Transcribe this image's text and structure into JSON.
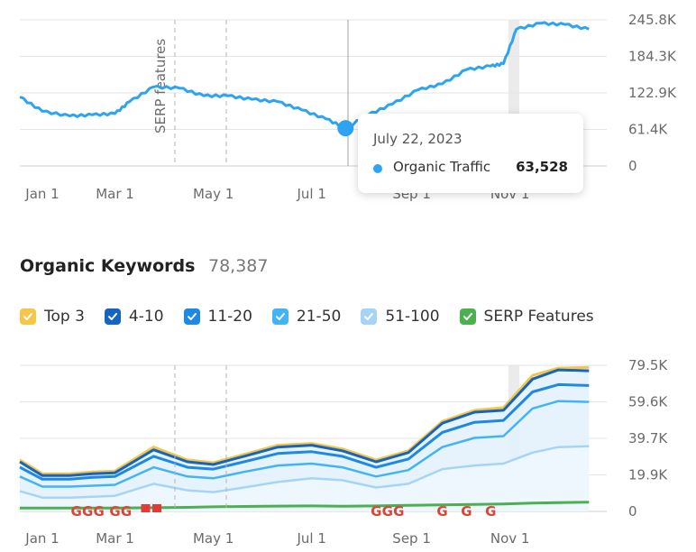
{
  "chart_data": [
    {
      "type": "line",
      "series": [
        {
          "name": "Organic Traffic",
          "color": "#2ea3f2"
        }
      ],
      "x_ticks": [
        "Jan 1",
        "Mar 1",
        "May 1",
        "Jul 1",
        "Sep 1",
        "Nov 1"
      ],
      "y_ticks": [
        "245.8K",
        "184.3K",
        "122.9K",
        "61.4K",
        "0"
      ],
      "ylim": [
        0,
        245800
      ],
      "annotation": "SERP features",
      "points": [
        [
          "2023-01-01",
          116000
        ],
        [
          "2023-01-15",
          92000
        ],
        [
          "2023-02-01",
          84000
        ],
        [
          "2023-02-15",
          86000
        ],
        [
          "2023-03-01",
          88000
        ],
        [
          "2023-03-10",
          108000
        ],
        [
          "2023-03-25",
          133000
        ],
        [
          "2023-04-10",
          131000
        ],
        [
          "2023-04-25",
          118000
        ],
        [
          "2023-05-10",
          118000
        ],
        [
          "2023-05-25",
          112000
        ],
        [
          "2023-06-10",
          108000
        ],
        [
          "2023-06-25",
          94000
        ],
        [
          "2023-07-10",
          79000
        ],
        [
          "2023-07-22",
          63528
        ],
        [
          "2023-08-05",
          86000
        ],
        [
          "2023-08-20",
          104000
        ],
        [
          "2023-09-05",
          128000
        ],
        [
          "2023-09-20",
          138000
        ],
        [
          "2023-10-05",
          162000
        ],
        [
          "2023-10-20",
          168000
        ],
        [
          "2023-10-28",
          172000
        ],
        [
          "2023-11-05",
          230000
        ],
        [
          "2023-11-20",
          240000
        ],
        [
          "2023-12-05",
          238000
        ],
        [
          "2023-12-20",
          230000
        ]
      ],
      "tooltip": {
        "date": "July 22, 2023",
        "label": "Organic Traffic",
        "value": "63,528"
      }
    },
    {
      "type": "area",
      "title": "Organic Keywords",
      "total": "78,387",
      "x_ticks": [
        "Jan 1",
        "Mar 1",
        "May 1",
        "Jul 1",
        "Sep 1",
        "Nov 1"
      ],
      "y_ticks": [
        "79.5K",
        "59.6K",
        "39.7K",
        "19.9K",
        "0"
      ],
      "ylim": [
        0,
        79500
      ],
      "x": [
        "2023-01-01",
        "2023-01-15",
        "2023-02-01",
        "2023-02-15",
        "2023-03-01",
        "2023-03-25",
        "2023-04-15",
        "2023-05-01",
        "2023-05-20",
        "2023-06-10",
        "2023-07-01",
        "2023-07-20",
        "2023-08-10",
        "2023-08-30",
        "2023-09-20",
        "2023-10-10",
        "2023-10-28",
        "2023-11-15",
        "2023-12-01",
        "2023-12-20"
      ],
      "series": [
        {
          "name": "Top 3",
          "color": "#f5c64a",
          "values": [
            28000,
            20500,
            20500,
            21500,
            22000,
            35000,
            28000,
            26500,
            31000,
            36000,
            37000,
            34000,
            28000,
            33000,
            49000,
            55000,
            56500,
            74000,
            78000,
            78387
          ]
        },
        {
          "name": "4-10",
          "color": "#1565c0",
          "values": [
            27000,
            19500,
            19500,
            20500,
            21000,
            33500,
            27000,
            25500,
            30000,
            35000,
            36000,
            33000,
            27000,
            32000,
            48000,
            54000,
            55000,
            72000,
            77000,
            76500
          ]
        },
        {
          "name": "11-20",
          "color": "#1e88e5",
          "values": [
            24000,
            17500,
            17500,
            18500,
            19000,
            30000,
            24000,
            23000,
            27000,
            31500,
            32500,
            30000,
            24000,
            28500,
            43000,
            48500,
            49500,
            65000,
            69000,
            68500
          ]
        },
        {
          "name": "21-50",
          "color": "#42b4f5",
          "values": [
            19000,
            13500,
            13500,
            14000,
            14500,
            24000,
            19000,
            18000,
            21500,
            25000,
            26000,
            24000,
            19000,
            22500,
            35000,
            40000,
            41000,
            56000,
            60000,
            59600
          ]
        },
        {
          "name": "51-100",
          "color": "#a6d4f7",
          "values": [
            11000,
            7500,
            7500,
            8000,
            8500,
            15000,
            11500,
            10500,
            13000,
            16000,
            18000,
            17000,
            13000,
            15000,
            23000,
            25000,
            26000,
            32000,
            35000,
            35500
          ]
        },
        {
          "name": "SERP Features",
          "color": "#4caf50",
          "values": [
            1800,
            1800,
            1800,
            1800,
            1800,
            2000,
            2200,
            2500,
            2700,
            2900,
            3000,
            2800,
            3000,
            3300,
            3600,
            3800,
            4000,
            4500,
            4800,
            5000
          ]
        }
      ],
      "google_marker_label": "G",
      "google_markers": [
        "2023-02-05",
        "2023-02-12",
        "2023-02-19",
        "2023-03-01",
        "2023-03-08",
        "2023-08-10",
        "2023-08-17",
        "2023-08-24",
        "2023-09-20",
        "2023-10-05",
        "2023-10-20"
      ],
      "flag_markers": [
        "2023-03-20",
        "2023-03-27"
      ]
    }
  ]
}
